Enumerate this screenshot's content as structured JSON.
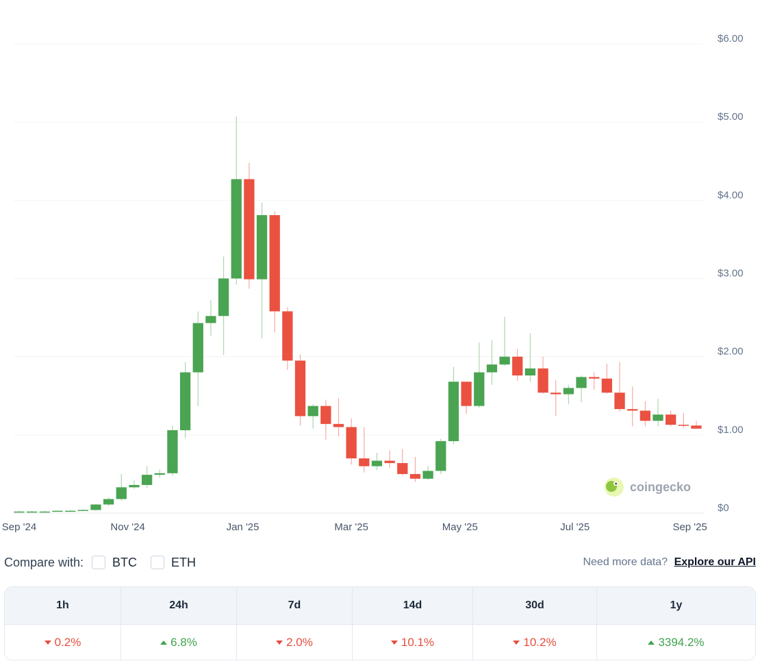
{
  "chart_data": {
    "type": "candlestick",
    "x": [
      "2024-09-01",
      "2024-09-08",
      "2024-09-15",
      "2024-09-22",
      "2024-09-29",
      "2024-10-06",
      "2024-10-13",
      "2024-10-20",
      "2024-10-27",
      "2024-11-03",
      "2024-11-10",
      "2024-11-17",
      "2024-11-24",
      "2024-12-01",
      "2024-12-08",
      "2024-12-15",
      "2024-12-22",
      "2024-12-29",
      "2025-01-05",
      "2025-01-12",
      "2025-01-19",
      "2025-01-26",
      "2025-02-02",
      "2025-02-09",
      "2025-02-16",
      "2025-02-23",
      "2025-03-02",
      "2025-03-09",
      "2025-03-16",
      "2025-03-23",
      "2025-03-30",
      "2025-04-06",
      "2025-04-13",
      "2025-04-20",
      "2025-04-27",
      "2025-05-04",
      "2025-05-11",
      "2025-05-18",
      "2025-05-25",
      "2025-06-01",
      "2025-06-08",
      "2025-06-15",
      "2025-06-22",
      "2025-06-29",
      "2025-07-06",
      "2025-07-13",
      "2025-07-20",
      "2025-07-27",
      "2025-08-03",
      "2025-08-10",
      "2025-08-17",
      "2025-08-24",
      "2025-08-31",
      "2025-09-07"
    ],
    "open": [
      0.02,
      0.02,
      0.02,
      0.02,
      0.03,
      0.03,
      0.04,
      0.11,
      0.18,
      0.33,
      0.36,
      0.49,
      0.51,
      1.06,
      1.8,
      2.43,
      2.52,
      3.0,
      4.27,
      2.99,
      3.81,
      2.58,
      1.95,
      1.24,
      1.37,
      1.14,
      1.1,
      0.7,
      0.6,
      0.67,
      0.64,
      0.5,
      0.44,
      0.54,
      0.92,
      1.68,
      1.37,
      1.8,
      1.9,
      2.0,
      1.76,
      1.85,
      1.54,
      1.52,
      1.6,
      1.74,
      1.72,
      1.54,
      1.33,
      1.31,
      1.18,
      1.26,
      1.13,
      1.12
    ],
    "high": [
      0.03,
      0.03,
      0.03,
      0.03,
      0.04,
      0.05,
      0.12,
      0.2,
      0.5,
      0.42,
      0.6,
      0.56,
      1.12,
      1.93,
      2.58,
      2.72,
      3.28,
      5.07,
      4.48,
      3.97,
      3.86,
      2.63,
      2.03,
      1.39,
      1.45,
      1.47,
      1.21,
      1.1,
      0.77,
      0.8,
      0.82,
      0.72,
      0.6,
      0.95,
      1.87,
      1.68,
      2.18,
      2.21,
      2.51,
      2.1,
      2.3,
      2.0,
      1.7,
      1.64,
      1.76,
      1.8,
      1.91,
      1.93,
      1.62,
      1.43,
      1.46,
      1.31,
      1.28,
      1.18
    ],
    "low": [
      0.01,
      0.01,
      0.01,
      0.02,
      0.02,
      0.03,
      0.03,
      0.09,
      0.16,
      0.31,
      0.32,
      0.45,
      0.48,
      0.96,
      1.37,
      2.27,
      2.02,
      2.92,
      2.87,
      2.23,
      2.31,
      1.83,
      1.12,
      1.08,
      0.94,
      0.98,
      0.62,
      0.52,
      0.55,
      0.58,
      0.48,
      0.4,
      0.42,
      0.5,
      0.88,
      1.27,
      1.35,
      1.64,
      1.88,
      1.69,
      1.68,
      1.53,
      1.24,
      1.39,
      1.42,
      1.58,
      1.53,
      1.3,
      1.11,
      1.11,
      1.11,
      1.11,
      1.09,
      1.09
    ],
    "close": [
      0.02,
      0.02,
      0.02,
      0.03,
      0.03,
      0.04,
      0.11,
      0.18,
      0.33,
      0.36,
      0.49,
      0.51,
      1.06,
      1.8,
      2.43,
      2.52,
      3.0,
      4.27,
      2.99,
      3.81,
      2.58,
      1.95,
      1.24,
      1.37,
      1.14,
      1.1,
      0.7,
      0.6,
      0.67,
      0.64,
      0.5,
      0.44,
      0.54,
      0.92,
      1.68,
      1.37,
      1.8,
      1.9,
      2.0,
      1.76,
      1.85,
      1.54,
      1.52,
      1.6,
      1.74,
      1.72,
      1.54,
      1.33,
      1.31,
      1.18,
      1.26,
      1.13,
      1.12,
      1.08
    ],
    "up_color": "#4aa452",
    "down_color": "#ea5140",
    "yticks": [
      0,
      1,
      2,
      3,
      4,
      5,
      6
    ],
    "ytick_labels": [
      "$0",
      "$1.00",
      "$2.00",
      "$3.00",
      "$4.00",
      "$5.00",
      "$6.00"
    ],
    "ylim": [
      0,
      6
    ],
    "xtick_labels": [
      "Sep '24",
      "Nov '24",
      "Jan '25",
      "Mar '25",
      "May '25",
      "Jul '25",
      "Sep '25"
    ],
    "xtick_index": [
      0,
      8.5,
      17.5,
      26,
      34.5,
      43.5,
      52.5
    ],
    "grid": true
  },
  "watermark": {
    "text": "coingecko"
  },
  "compare": {
    "label": "Compare with:",
    "options": [
      "BTC",
      "ETH"
    ],
    "api_prompt": "Need more data?",
    "api_link": "Explore our API"
  },
  "performance": {
    "headers": [
      "1h",
      "24h",
      "7d",
      "14d",
      "30d",
      "1y"
    ],
    "values": [
      {
        "text": "0.2%",
        "direction": "down"
      },
      {
        "text": "6.8%",
        "direction": "up"
      },
      {
        "text": "2.0%",
        "direction": "down"
      },
      {
        "text": "10.1%",
        "direction": "down"
      },
      {
        "text": "10.2%",
        "direction": "down"
      },
      {
        "text": "3394.2%",
        "direction": "up"
      }
    ]
  }
}
